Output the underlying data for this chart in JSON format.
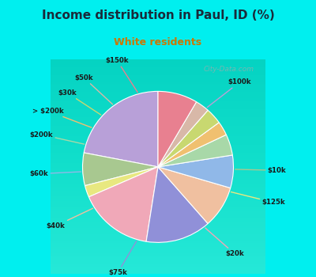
{
  "title": "Income distribution in Paul, ID (%)",
  "subtitle": "White residents",
  "background_outer": "#00EFEF",
  "background_inner_top": "#f0faf0",
  "background_inner_bottom": "#c8edd8",
  "watermark": "City-Data.com",
  "title_color": "#1a2a3a",
  "subtitle_color": "#cc7700",
  "slices": [
    {
      "label": "$100k",
      "value": 22.0,
      "color": "#b8a0d8"
    },
    {
      "label": "$10k",
      "value": 7.0,
      "color": "#a8c890"
    },
    {
      "label": "$125k",
      "value": 2.5,
      "color": "#e8e880"
    },
    {
      "label": "$20k",
      "value": 16.0,
      "color": "#f0a8b8"
    },
    {
      "label": "$75k",
      "value": 14.0,
      "color": "#9090d8"
    },
    {
      "label": "$40k",
      "value": 9.0,
      "color": "#f0c0a0"
    },
    {
      "label": "$60k",
      "value": 7.0,
      "color": "#90b8e8"
    },
    {
      "label": "$200k",
      "value": 4.5,
      "color": "#a8d8a8"
    },
    {
      "label": "> $200k",
      "value": 3.0,
      "color": "#f0c070"
    },
    {
      "label": "$30k",
      "value": 3.5,
      "color": "#c8d870"
    },
    {
      "label": "$50k",
      "value": 3.0,
      "color": "#d8b8a8"
    },
    {
      "label": "$150k",
      "value": 8.5,
      "color": "#e88090"
    }
  ]
}
